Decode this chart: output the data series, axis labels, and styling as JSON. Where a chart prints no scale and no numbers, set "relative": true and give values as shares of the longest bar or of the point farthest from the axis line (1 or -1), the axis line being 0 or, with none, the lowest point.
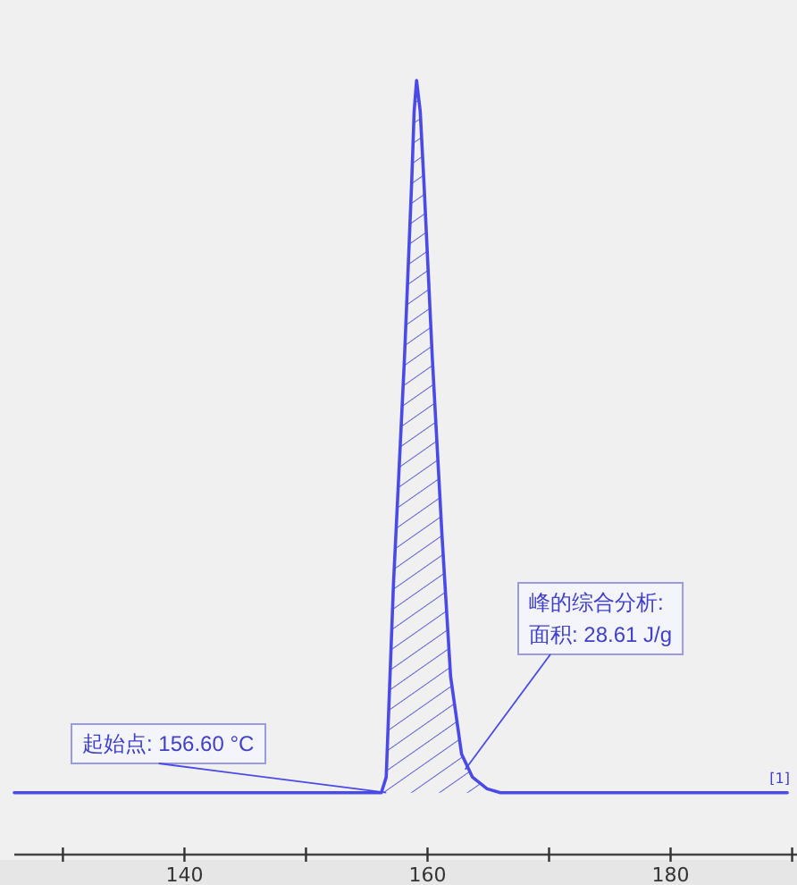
{
  "chart_data": {
    "type": "area",
    "relative": true,
    "series": [
      {
        "color": "#4a4ae6",
        "x": [
          126.0,
          156.2,
          156.6,
          157.2,
          158.1,
          158.7,
          158.9,
          159.1,
          159.4,
          159.7,
          160.4,
          161.2,
          161.9,
          162.8,
          163.7,
          164.9,
          166.0,
          189.6
        ],
        "values": [
          0.08,
          0.08,
          0.1,
          0.35,
          0.64,
          0.87,
          0.96,
          1,
          0.96,
          0.87,
          0.64,
          0.41,
          0.23,
          0.13,
          0.1,
          0.085,
          0.08,
          0.08
        ]
      }
    ],
    "xlim": [
      126,
      190.4
    ],
    "xticks": [
      {
        "value": 130,
        "label": null
      },
      140,
      {
        "value": 150,
        "label": null
      },
      160,
      {
        "value": 170,
        "label": null
      },
      180,
      {
        "value": 190,
        "label": null
      }
    ],
    "annotations": [
      {
        "text": "起始点: 156.60 °C",
        "x": 156.6,
        "y": 0.08
      },
      {
        "text": "峰的综合分析:\n面积: 28.61 J/g",
        "x": 163.1,
        "y": 0.11
      },
      "[1]"
    ],
    "grid": false
  }
}
